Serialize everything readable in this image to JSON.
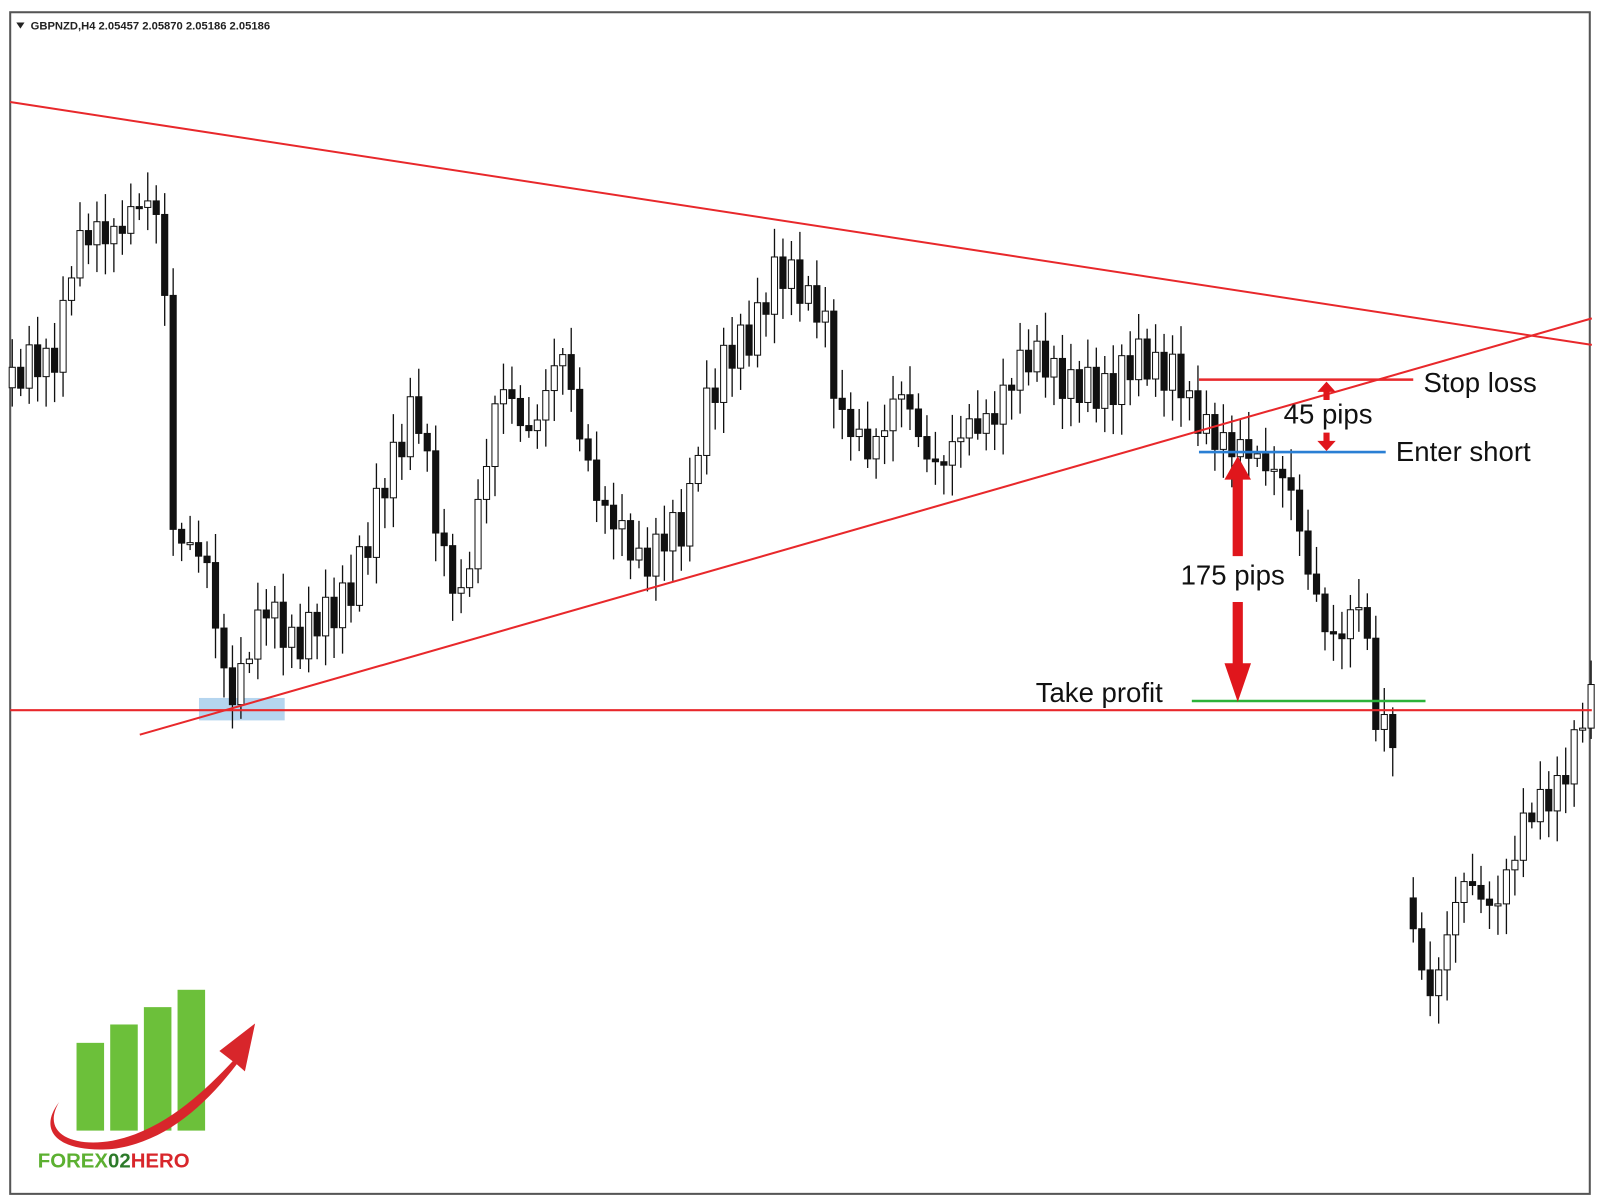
{
  "header": {
    "title": "GBPNZD,H4  2.05457 2.05870 2.05186 2.05186"
  },
  "annotations": {
    "stop_loss": "Stop loss",
    "stop_pips": "45 pips",
    "enter_short": "Enter short",
    "target_pips": "175 pips",
    "take_profit": "Take profit"
  },
  "logo": {
    "parts": [
      "FOREX",
      "02",
      "HERO"
    ]
  }
}
